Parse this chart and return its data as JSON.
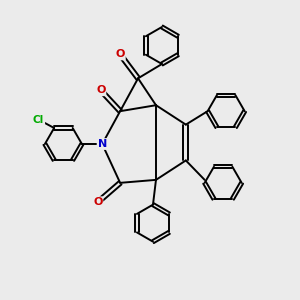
{
  "background_color": "#ebebeb",
  "atom_colors": {
    "C": "#000000",
    "N": "#0000cc",
    "O": "#cc0000",
    "Cl": "#00aa00"
  },
  "line_color": "#000000",
  "line_width": 1.4,
  "figsize": [
    3.0,
    3.0
  ],
  "dpi": 100
}
